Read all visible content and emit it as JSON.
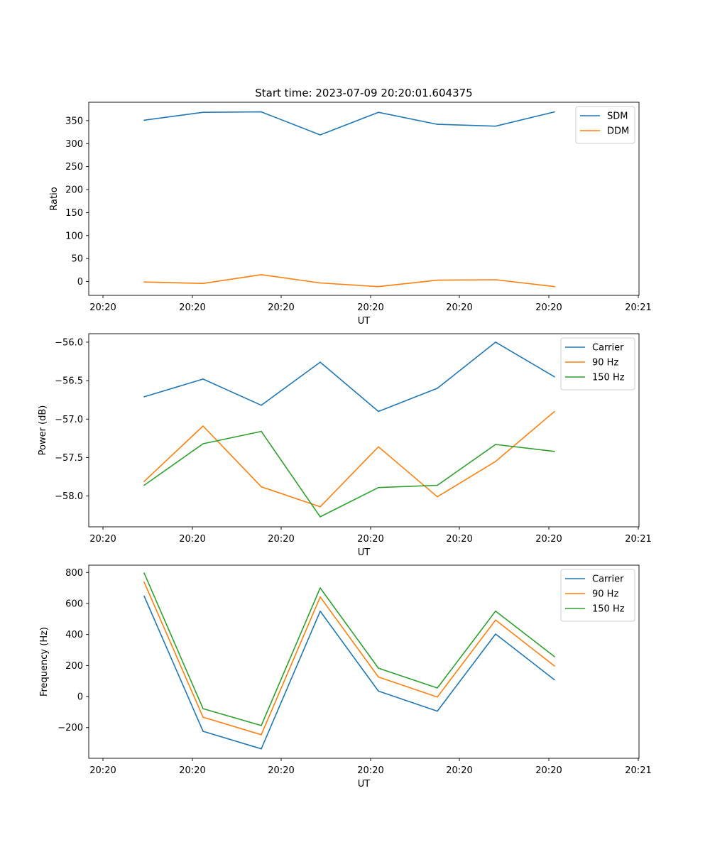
{
  "title": "Start time: 2023-07-09 20:20:01.604375",
  "colors": {
    "blue": "#1f77b4",
    "orange": "#ff7f0e",
    "green": "#2ca02c"
  },
  "chart_data": [
    {
      "type": "line",
      "xlabel": "UT",
      "ylabel": "Ratio",
      "xticks": [
        "20:20",
        "20:20",
        "20:20",
        "20:20",
        "20:20",
        "20:20",
        "20:21"
      ],
      "yticks": [
        "0",
        "50",
        "100",
        "150",
        "200",
        "250",
        "300",
        "350"
      ],
      "ylim": [
        -30,
        390
      ],
      "legend": "top-right",
      "series": [
        {
          "name": "SDM",
          "color": "#1f77b4",
          "values": [
            351,
            368,
            369,
            319,
            368,
            342,
            338,
            369
          ]
        },
        {
          "name": "DDM",
          "color": "#ff7f0e",
          "values": [
            -1,
            -4,
            15,
            -3,
            -11,
            3,
            4,
            -11
          ]
        }
      ]
    },
    {
      "type": "line",
      "xlabel": "UT",
      "ylabel": "Power (dB)",
      "xticks": [
        "20:20",
        "20:20",
        "20:20",
        "20:20",
        "20:20",
        "20:20",
        "20:21"
      ],
      "yticks": [
        "−58.0",
        "−57.5",
        "−57.0",
        "−56.5",
        "−56.0"
      ],
      "ylim": [
        -58.4,
        -55.89
      ],
      "legend": "top-right",
      "series": [
        {
          "name": "Carrier",
          "color": "#1f77b4",
          "values": [
            -56.71,
            -56.48,
            -56.82,
            -56.26,
            -56.9,
            -56.6,
            -56.0,
            -56.45
          ]
        },
        {
          "name": "90 Hz",
          "color": "#ff7f0e",
          "values": [
            -57.81,
            -57.09,
            -57.88,
            -58.14,
            -57.36,
            -58.01,
            -57.55,
            -56.9
          ]
        },
        {
          "name": "150 Hz",
          "color": "#2ca02c",
          "values": [
            -57.86,
            -57.32,
            -57.16,
            -58.27,
            -57.89,
            -57.86,
            -57.33,
            -57.42
          ]
        }
      ]
    },
    {
      "type": "line",
      "xlabel": "UT",
      "ylabel": "Frequency (Hz)",
      "xticks": [
        "20:20",
        "20:20",
        "20:20",
        "20:20",
        "20:20",
        "20:20",
        "20:21"
      ],
      "yticks": [
        "−200",
        "0",
        "200",
        "400",
        "600",
        "800"
      ],
      "ylim": [
        -398,
        847
      ],
      "legend": "top-right",
      "series": [
        {
          "name": "Carrier",
          "color": "#1f77b4",
          "values": [
            648,
            -224,
            -337,
            550,
            35,
            -94,
            403,
            108
          ]
        },
        {
          "name": "90 Hz",
          "color": "#ff7f0e",
          "values": [
            738,
            -133,
            -246,
            642,
            126,
            -3,
            493,
            197
          ]
        },
        {
          "name": "150 Hz",
          "color": "#2ca02c",
          "values": [
            796,
            -78,
            -187,
            700,
            183,
            55,
            551,
            257
          ]
        }
      ]
    }
  ]
}
